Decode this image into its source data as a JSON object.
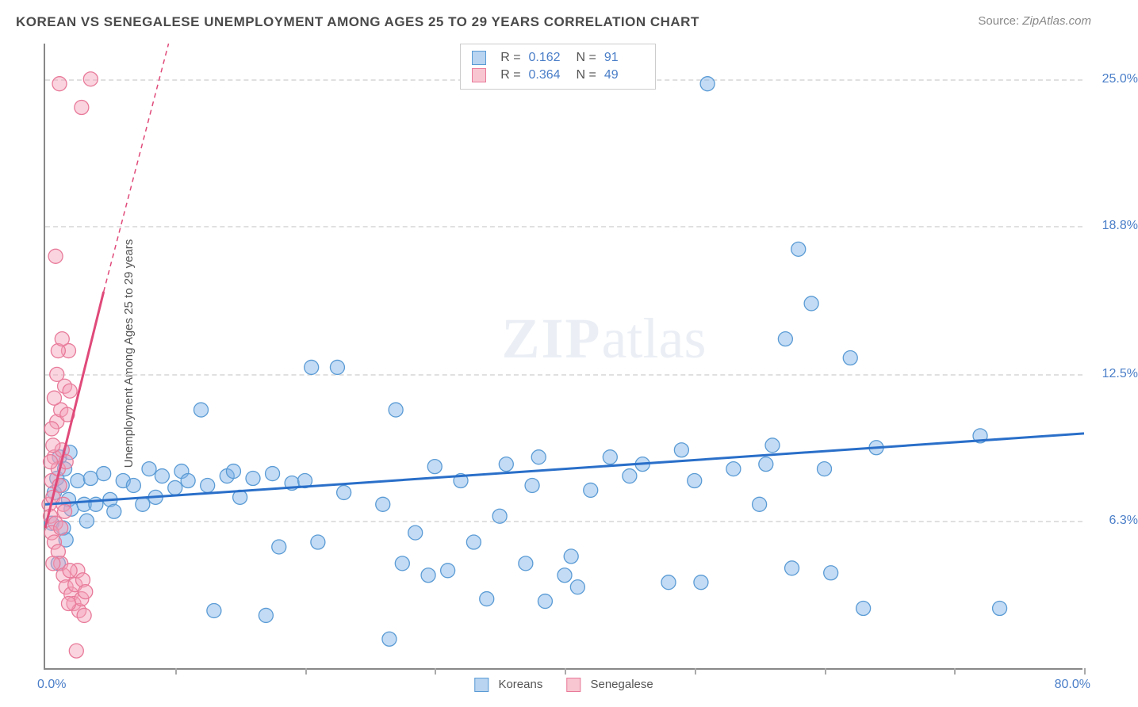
{
  "title": "KOREAN VS SENEGALESE UNEMPLOYMENT AMONG AGES 25 TO 29 YEARS CORRELATION CHART",
  "source_label": "Source:",
  "source_value": "ZipAtlas.com",
  "ylabel": "Unemployment Among Ages 25 to 29 years",
  "watermark": {
    "zip": "ZIP",
    "rest": "atlas"
  },
  "chart": {
    "type": "scatter",
    "xlim": [
      0,
      80
    ],
    "ylim": [
      0,
      26.5
    ],
    "x_origin_label": "0.0%",
    "x_max_label": "80.0%",
    "yticks": [
      {
        "v": 6.3,
        "label": "6.3%"
      },
      {
        "v": 12.5,
        "label": "12.5%"
      },
      {
        "v": 18.8,
        "label": "18.8%"
      },
      {
        "v": 25.0,
        "label": "25.0%"
      }
    ],
    "xtick_positions": [
      10,
      20,
      30,
      40,
      50,
      60,
      70,
      80
    ],
    "grid_color": "#e0e0e0",
    "background_color": "#ffffff",
    "axis_color": "#888888",
    "point_radius": 9,
    "point_stroke_width": 1.3,
    "trend_line_width": 3,
    "trend_dash_width": 1.5,
    "series": [
      {
        "name": "Koreans",
        "fill": "rgba(122,175,230,0.45)",
        "stroke": "#5a9bd5",
        "trend_color": "#2a6fc9",
        "R": "0.162",
        "N": "91",
        "trend": {
          "x1": 0,
          "y1": 7.0,
          "x2": 80,
          "y2": 10.0
        },
        "trend_dash": null,
        "points": [
          [
            0.5,
            6.2
          ],
          [
            0.7,
            7.5
          ],
          [
            0.9,
            8.1
          ],
          [
            1.0,
            4.5
          ],
          [
            1.1,
            9.0
          ],
          [
            1.3,
            7.8
          ],
          [
            1.4,
            6.0
          ],
          [
            1.5,
            8.5
          ],
          [
            1.6,
            5.5
          ],
          [
            1.8,
            7.2
          ],
          [
            1.9,
            9.2
          ],
          [
            2.0,
            6.8
          ],
          [
            2.5,
            8.0
          ],
          [
            3.0,
            7.0
          ],
          [
            3.2,
            6.3
          ],
          [
            3.5,
            8.1
          ],
          [
            3.9,
            7.0
          ],
          [
            4.5,
            8.3
          ],
          [
            5.0,
            7.2
          ],
          [
            5.3,
            6.7
          ],
          [
            6.0,
            8.0
          ],
          [
            6.8,
            7.8
          ],
          [
            7.5,
            7.0
          ],
          [
            8.0,
            8.5
          ],
          [
            8.5,
            7.3
          ],
          [
            9.0,
            8.2
          ],
          [
            10.0,
            7.7
          ],
          [
            10.5,
            8.4
          ],
          [
            11.0,
            8.0
          ],
          [
            12.0,
            11.0
          ],
          [
            12.5,
            7.8
          ],
          [
            13.0,
            2.5
          ],
          [
            14.0,
            8.2
          ],
          [
            14.5,
            8.4
          ],
          [
            15.0,
            7.3
          ],
          [
            16.0,
            8.1
          ],
          [
            17.0,
            2.3
          ],
          [
            17.5,
            8.3
          ],
          [
            18.0,
            5.2
          ],
          [
            19.0,
            7.9
          ],
          [
            20.0,
            8.0
          ],
          [
            20.5,
            12.8
          ],
          [
            21.0,
            5.4
          ],
          [
            22.5,
            12.8
          ],
          [
            23.0,
            7.5
          ],
          [
            26.0,
            7.0
          ],
          [
            26.5,
            1.3
          ],
          [
            27.0,
            11.0
          ],
          [
            27.5,
            4.5
          ],
          [
            28.5,
            5.8
          ],
          [
            29.5,
            4.0
          ],
          [
            30.0,
            8.6
          ],
          [
            31.0,
            4.2
          ],
          [
            32.0,
            8.0
          ],
          [
            33.0,
            5.4
          ],
          [
            34.0,
            3.0
          ],
          [
            35.0,
            6.5
          ],
          [
            35.5,
            8.7
          ],
          [
            37.0,
            4.5
          ],
          [
            37.5,
            7.8
          ],
          [
            38.0,
            9.0
          ],
          [
            38.5,
            2.9
          ],
          [
            40.0,
            4.0
          ],
          [
            40.5,
            4.8
          ],
          [
            41.0,
            3.5
          ],
          [
            42.0,
            7.6
          ],
          [
            43.5,
            9.0
          ],
          [
            45.0,
            8.2
          ],
          [
            46.0,
            8.7
          ],
          [
            48.0,
            3.7
          ],
          [
            49.0,
            9.3
          ],
          [
            50.0,
            8.0
          ],
          [
            50.5,
            3.7
          ],
          [
            51.0,
            24.8
          ],
          [
            53.0,
            8.5
          ],
          [
            55.0,
            7.0
          ],
          [
            55.5,
            8.7
          ],
          [
            56.0,
            9.5
          ],
          [
            57.0,
            14.0
          ],
          [
            57.5,
            4.3
          ],
          [
            58.0,
            17.8
          ],
          [
            59.0,
            15.5
          ],
          [
            60.0,
            8.5
          ],
          [
            60.5,
            4.1
          ],
          [
            62.0,
            13.2
          ],
          [
            63.0,
            2.6
          ],
          [
            64.0,
            9.4
          ],
          [
            72.0,
            9.9
          ],
          [
            73.5,
            2.6
          ]
        ]
      },
      {
        "name": "Senegalese",
        "fill": "rgba(245,160,185,0.45)",
        "stroke": "#e87a9a",
        "trend_color": "#e04a7a",
        "R": "0.364",
        "N": "49",
        "trend": {
          "x1": 0,
          "y1": 6.0,
          "x2": 4.5,
          "y2": 16.0
        },
        "trend_dash": {
          "x1": 4.5,
          "y1": 16.0,
          "x2": 9.5,
          "y2": 26.5
        },
        "points": [
          [
            0.3,
            7.0
          ],
          [
            0.4,
            6.5
          ],
          [
            0.5,
            8.0
          ],
          [
            0.6,
            7.3
          ],
          [
            0.7,
            9.0
          ],
          [
            0.8,
            6.2
          ],
          [
            0.9,
            10.5
          ],
          [
            1.0,
            8.5
          ],
          [
            1.1,
            7.8
          ],
          [
            1.2,
            11.0
          ],
          [
            1.3,
            9.3
          ],
          [
            1.4,
            7.0
          ],
          [
            1.5,
            12.0
          ],
          [
            1.6,
            8.8
          ],
          [
            1.7,
            10.8
          ],
          [
            1.8,
            13.5
          ],
          [
            1.9,
            11.8
          ],
          [
            0.5,
            5.8
          ],
          [
            0.7,
            5.4
          ],
          [
            1.0,
            5.0
          ],
          [
            1.2,
            4.5
          ],
          [
            1.4,
            4.0
          ],
          [
            1.6,
            3.5
          ],
          [
            0.8,
            17.5
          ],
          [
            1.0,
            13.5
          ],
          [
            1.3,
            14.0
          ],
          [
            2.0,
            3.2
          ],
          [
            2.2,
            2.8
          ],
          [
            2.3,
            3.6
          ],
          [
            2.5,
            4.2
          ],
          [
            2.6,
            2.5
          ],
          [
            2.8,
            3.0
          ],
          [
            2.9,
            3.8
          ],
          [
            3.0,
            2.3
          ],
          [
            3.1,
            3.3
          ],
          [
            1.8,
            2.8
          ],
          [
            1.9,
            4.2
          ],
          [
            2.4,
            0.8
          ],
          [
            0.6,
            4.5
          ],
          [
            2.8,
            23.8
          ],
          [
            1.1,
            24.8
          ],
          [
            3.5,
            25.0
          ],
          [
            0.4,
            8.8
          ],
          [
            0.6,
            9.5
          ],
          [
            0.5,
            10.2
          ],
          [
            0.9,
            12.5
          ],
          [
            0.7,
            11.5
          ],
          [
            1.2,
            6.0
          ],
          [
            1.5,
            6.7
          ]
        ]
      }
    ],
    "legend_bottom": [
      {
        "name": "Koreans",
        "color": "blue"
      },
      {
        "name": "Senegalese",
        "color": "pink"
      }
    ]
  }
}
